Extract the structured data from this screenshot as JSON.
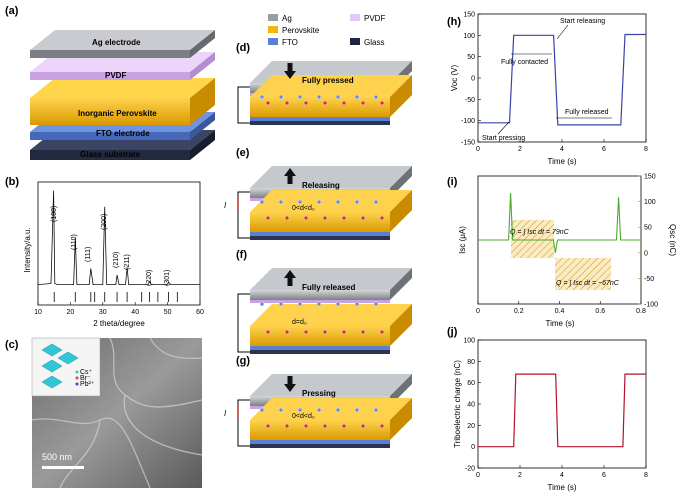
{
  "panels": {
    "a": {
      "label": "(a)",
      "layers": [
        "Ag electrode",
        "PVDF",
        "Inorganic Perovskite",
        "FTO electrode",
        "Glass substrate"
      ]
    },
    "b": {
      "label": "(b)",
      "peaks": [
        "(100)",
        "(110)",
        "(111)",
        "(200)",
        "(210)",
        "(211)",
        "(220)",
        "(301)"
      ]
    },
    "c": {
      "label": "(c)",
      "scale_bar": "500 nm",
      "legend": [
        "Cs⁺",
        "Br⁻",
        "Pb²⁺"
      ]
    },
    "d": {
      "label": "(d)",
      "text": "Fully pressed"
    },
    "e": {
      "label": "(e)",
      "text": "Releasing",
      "current": "I",
      "gap": "0<d<d₀"
    },
    "f": {
      "label": "(f)",
      "text": "Fully released",
      "gap": "d=d₀"
    },
    "g": {
      "label": "(g)",
      "text": "Pressing",
      "current": "I",
      "gap": "0<d<d₀"
    },
    "legend": {
      "ag": "Ag",
      "pvdf": "PVDF",
      "perovskite": "Perovskite",
      "fto": "FTO",
      "glass": "Glass"
    },
    "h": {
      "label": "(h)",
      "annotations": {
        "start_releasing": "Start releasing",
        "fully_contacted": "Fully contacted",
        "fully_released": "Fully released",
        "start_pressing": "Start pressing"
      }
    },
    "i": {
      "label": "(i)",
      "eq1": "Q = ∫ Isc dt = 79nC",
      "eq2": "Q = ∫ Isc dt = −67nC"
    },
    "j": {
      "label": "(j)"
    }
  },
  "colors": {
    "ag": "#8a8d92",
    "pvdf": "#d9b8ee",
    "perovskite": "#f2b705",
    "fto": "#5b7fd1",
    "glass": "#2a3450",
    "voc_line": "#3a43a8",
    "isc_line": "#4caa2a",
    "charge_line": "#b3122a",
    "q_axis": "#c98c00"
  },
  "chart_data": [
    {
      "panel": "b",
      "type": "line",
      "xlabel": "2 theta/degree",
      "ylabel": "Intensity/a.u.",
      "xlim": [
        10,
        60
      ],
      "xticks": [
        10,
        20,
        30,
        40,
        50,
        60
      ],
      "x": [
        10,
        14,
        14.8,
        15.2,
        16,
        21,
        21.5,
        22,
        25.8,
        26.3,
        27,
        30,
        30.6,
        31.2,
        34,
        34.4,
        35,
        37,
        37.5,
        38,
        44,
        44.4,
        45,
        49.8,
        50.3,
        51,
        60
      ],
      "y": [
        5,
        6,
        92,
        6,
        5,
        5,
        48,
        5,
        5,
        20,
        5,
        5,
        77,
        5,
        5,
        14,
        5,
        5,
        21,
        5,
        5,
        8,
        5,
        5,
        7,
        5,
        5
      ]
    },
    {
      "panel": "h",
      "type": "line",
      "xlabel": "Time (s)",
      "ylabel": "Voc (V)",
      "xlim": [
        0,
        8
      ],
      "ylim": [
        -150,
        150
      ],
      "xticks": [
        0,
        2,
        4,
        6,
        8
      ],
      "yticks": [
        -150,
        -100,
        -50,
        0,
        50,
        100,
        150
      ],
      "x": [
        0,
        1.5,
        1.7,
        3.6,
        3.8,
        6.8,
        7.0,
        8
      ],
      "y": [
        -105,
        -105,
        100,
        100,
        -110,
        -110,
        102,
        102
      ]
    },
    {
      "panel": "i",
      "type": "line",
      "xlabel": "Time (s)",
      "ylabel": "Isc (μA)",
      "ylabel_right": "Qsc (nC)",
      "xlim": [
        0.0,
        0.8
      ],
      "ylim": [
        -3,
        3
      ],
      "ylim_right": [
        -100,
        150
      ],
      "xticks": [
        0.0,
        0.2,
        0.4,
        0.6,
        0.8
      ],
      "yticks_right": [
        -100,
        -50,
        0,
        50,
        100,
        150
      ],
      "x": [
        0.0,
        0.15,
        0.16,
        0.17,
        0.37,
        0.38,
        0.39,
        0.68,
        0.69,
        0.7,
        0.8
      ],
      "y": [
        0,
        0,
        2.2,
        0,
        0,
        -0.6,
        0,
        0,
        2.0,
        0,
        0
      ]
    },
    {
      "panel": "j",
      "type": "line",
      "xlabel": "Time (s)",
      "ylabel": "Triboelectric charge (nC)",
      "xlim": [
        0,
        8
      ],
      "ylim": [
        -20,
        100
      ],
      "xticks": [
        0,
        2,
        4,
        6,
        8
      ],
      "yticks": [
        -20,
        0,
        20,
        40,
        60,
        80,
        100
      ],
      "x": [
        0,
        1.7,
        1.8,
        3.7,
        3.8,
        6.9,
        7.0,
        8
      ],
      "y": [
        0,
        0,
        68,
        68,
        0,
        0,
        68,
        68
      ]
    }
  ]
}
